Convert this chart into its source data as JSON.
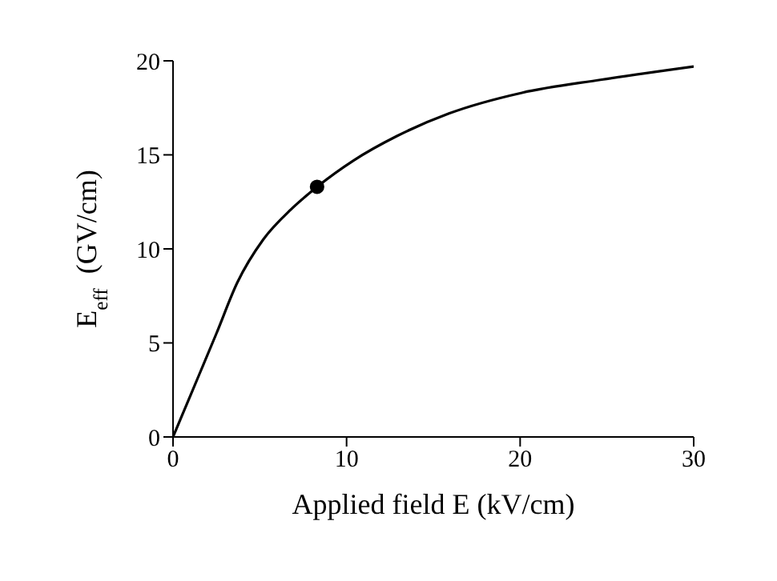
{
  "chart_data": {
    "type": "line",
    "xlabel": "Applied field E (kV/cm)",
    "ylabel": "E$_{eff}$  (GV/cm)",
    "xlim": [
      0,
      30
    ],
    "ylim": [
      0,
      20
    ],
    "xticks": [
      0,
      10,
      20,
      30
    ],
    "yticks": [
      0,
      5,
      10,
      15,
      20
    ],
    "grid": false,
    "series": [
      {
        "color": "#000000",
        "marker": "none",
        "x": [
          0,
          1,
          2.5,
          3.7,
          5.2,
          6.8,
          8.3,
          10.4,
          12.9,
          15.9,
          20.1,
          24.7,
          30
        ],
        "values": [
          0,
          2.2,
          5.5,
          8.2,
          10.5,
          12.1,
          13.3,
          14.7,
          16,
          17.2,
          18.3,
          19,
          19.7
        ]
      },
      {
        "type": "scatter",
        "color": "#000000",
        "marker": "circle",
        "x": [
          8.3
        ],
        "values": [
          13.3
        ]
      }
    ]
  }
}
